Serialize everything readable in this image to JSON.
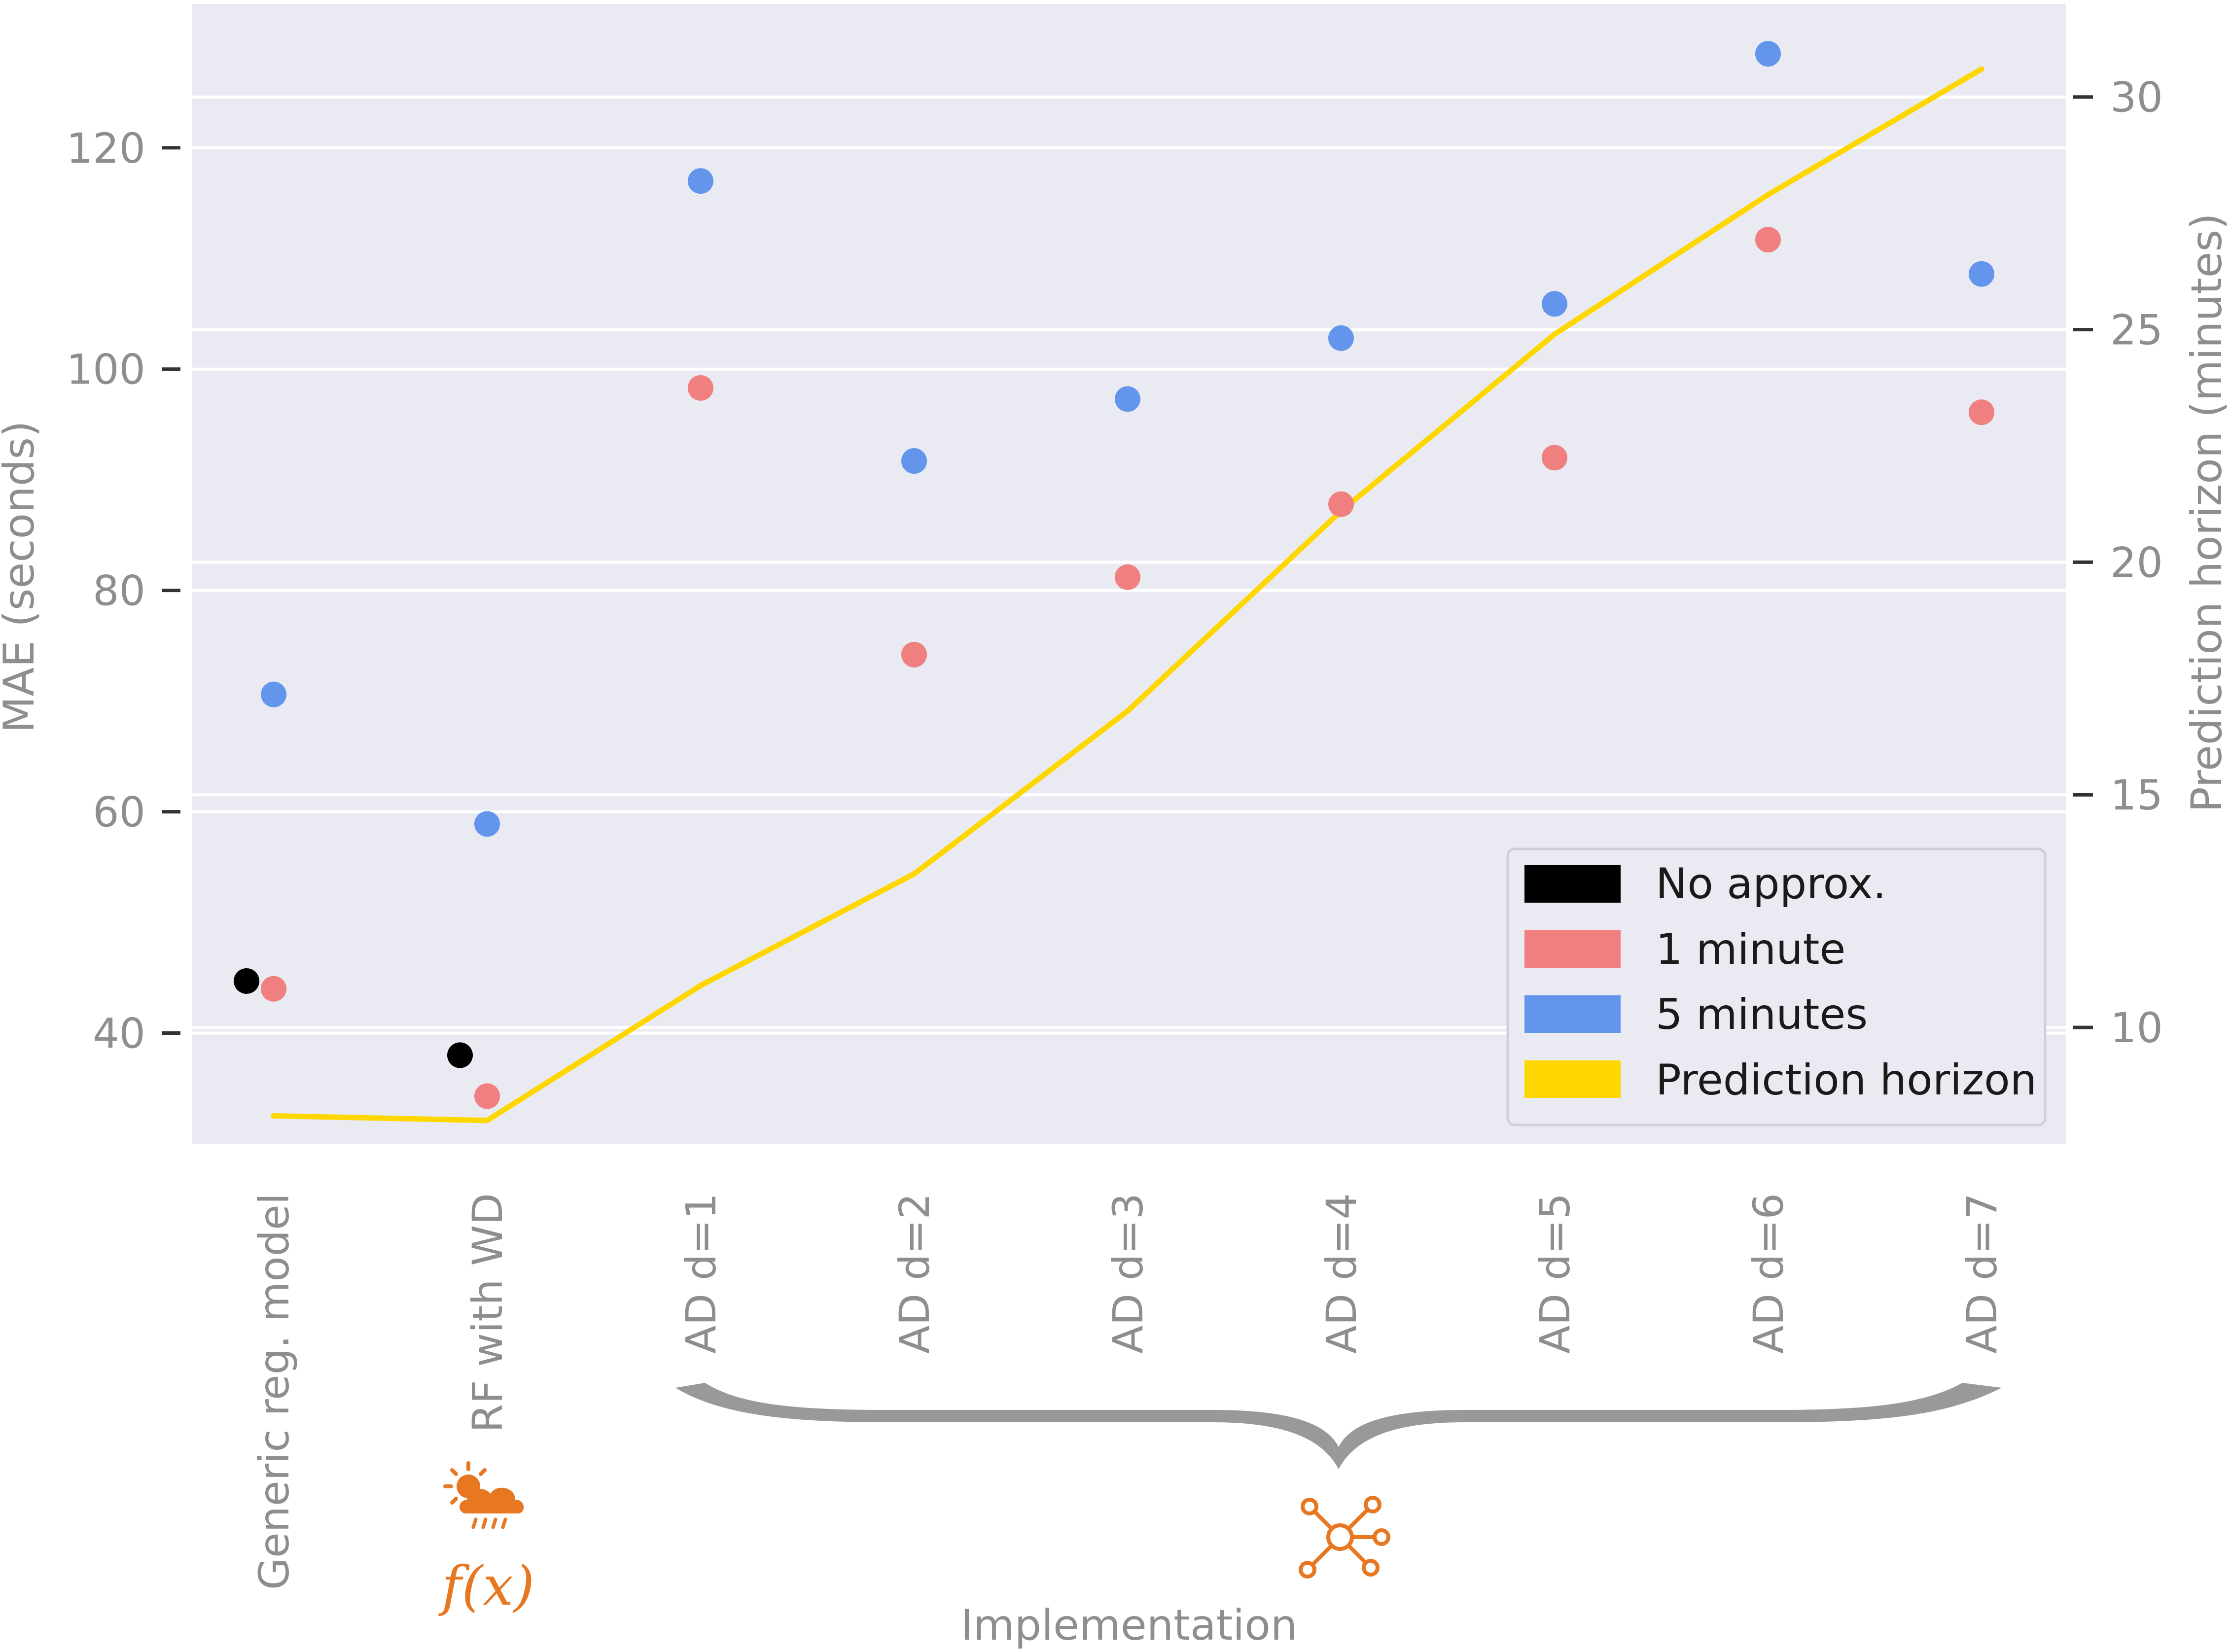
{
  "chart_data": {
    "type": "scatter",
    "categories": [
      "Generic reg. model",
      "RF with WD",
      "AD d=1",
      "AD d=2",
      "AD d=3",
      "AD d=4",
      "AD d=5",
      "AD d=6",
      "AD d=7"
    ],
    "series": [
      {
        "name": "No approx.",
        "axis": "left",
        "color": "#000000",
        "x_index": [
          0,
          1
        ],
        "values": [
          44.7,
          38.0
        ]
      },
      {
        "name": "1 minute",
        "axis": "left",
        "color": "#f08080",
        "x_index": [
          0,
          1,
          2,
          3,
          4,
          5,
          6,
          7,
          8
        ],
        "values": [
          44.0,
          34.3,
          98.3,
          74.2,
          81.2,
          87.8,
          92.0,
          111.7,
          96.1
        ]
      },
      {
        "name": "5 minutes",
        "axis": "left",
        "color": "#6495ed",
        "x_index": [
          0,
          1,
          2,
          3,
          4,
          5,
          6,
          7,
          8
        ],
        "values": [
          70.6,
          58.9,
          117.0,
          91.7,
          97.3,
          102.8,
          105.9,
          128.5,
          108.6
        ]
      },
      {
        "name": "Prediction horizon",
        "axis": "right",
        "type": "line",
        "color": "#ffd700",
        "x_index": [
          0,
          1,
          2,
          3,
          4,
          5,
          6,
          7,
          8
        ],
        "values": [
          8.1,
          8.0,
          10.9,
          13.3,
          16.8,
          21.1,
          24.9,
          27.9,
          30.6
        ]
      }
    ],
    "xlabel": "Implementation",
    "ylabel": "MAE (seconds)",
    "ylabel_right": "Prediction horizon (minutes)",
    "ylim": [
      30,
      133
    ],
    "ylim_right": [
      7.5,
      32
    ],
    "yticks": [
      40,
      60,
      80,
      100,
      120
    ],
    "yticks_right": [
      10,
      15,
      20,
      25,
      30
    ],
    "grid": true,
    "legend_placement": "lower-right",
    "legend": [
      "No approx.",
      "1 minute",
      "5 minutes",
      "Prediction horizon"
    ],
    "background_color": "#eaeaf2",
    "annotations": {
      "weather_icon": "sun-cloud-rain-icon",
      "function_label": "f(x)",
      "network_icon": "network-hub-icon",
      "brace": "curly-brace-under-AD-categories",
      "accent_color": "#e87722"
    }
  }
}
